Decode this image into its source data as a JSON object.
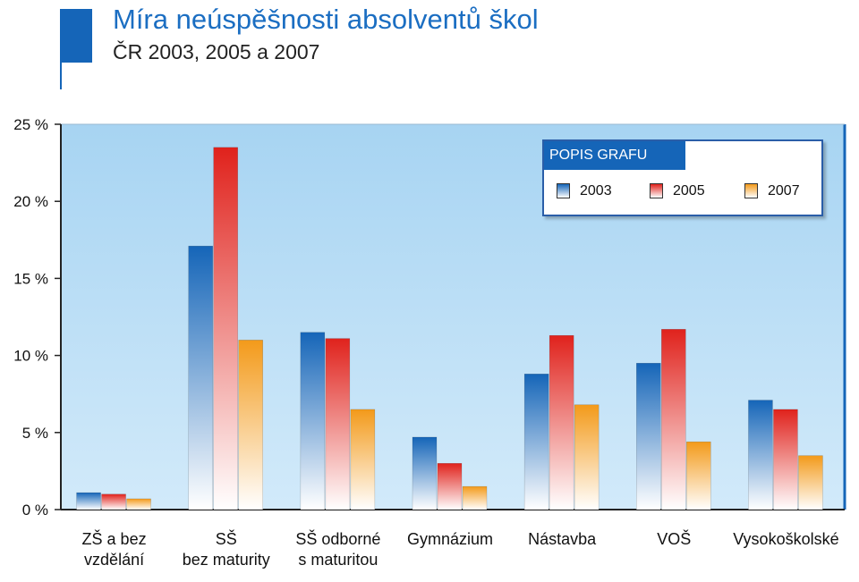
{
  "header": {
    "title": "Míra neúspěšnosti absolventů škol",
    "subtitle": "ČR 2003, 2005 a 2007"
  },
  "legend": {
    "header": "POPIS GRAFU",
    "placement": "top-right"
  },
  "colors": {
    "plot_background": "#a7d4f2",
    "series_2003": "#1565b8",
    "series_2005": "#e0221c",
    "series_2007": "#f39a1a",
    "title": "#1b6ec2",
    "accent": "#1565b8"
  },
  "chart_data": {
    "type": "bar",
    "categories": [
      [
        "ZŠ a bez",
        "vzdělání"
      ],
      [
        "SŠ",
        "bez maturity"
      ],
      [
        "SŠ odborné",
        "s maturitou"
      ],
      [
        "Gymnázium"
      ],
      [
        "Nástavba"
      ],
      [
        "VOŠ"
      ],
      [
        "Vysokoškolské"
      ]
    ],
    "series": [
      {
        "name": "2003",
        "values": [
          1.1,
          17.1,
          11.5,
          4.7,
          8.8,
          9.5,
          7.1
        ]
      },
      {
        "name": "2005",
        "values": [
          1.0,
          23.5,
          11.1,
          3.0,
          11.3,
          11.7,
          6.5
        ]
      },
      {
        "name": "2007",
        "values": [
          0.7,
          11.0,
          6.5,
          1.5,
          6.8,
          4.4,
          3.5
        ]
      }
    ],
    "yticks": [
      "0 %",
      "5 %",
      "10 %",
      "15 %",
      "20 %",
      "25 %"
    ],
    "ylim": [
      0,
      25
    ],
    "grid": false
  }
}
